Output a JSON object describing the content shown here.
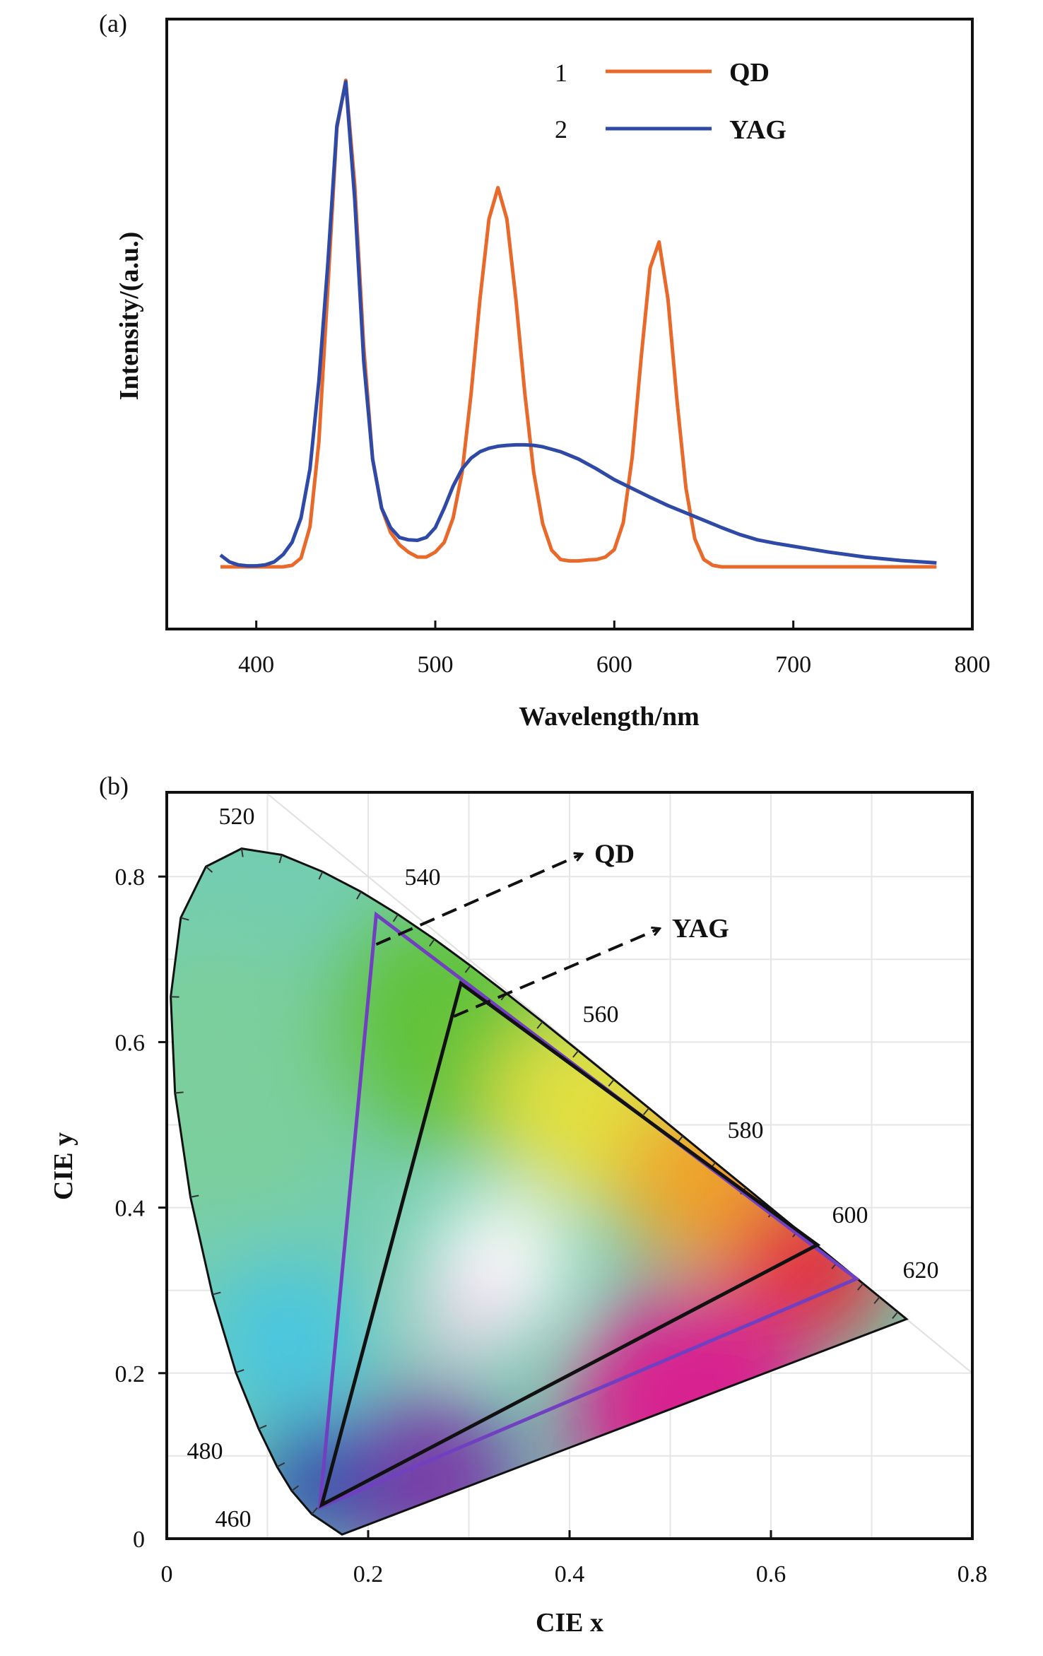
{
  "chart_data": [
    {
      "type": "line",
      "panel_label": "(a)",
      "xlabel": "Wavelength/nm",
      "ylabel": "Intensity/(a.u.)",
      "xlim": [
        350,
        800
      ],
      "ylim": [
        -0.127,
        1.118
      ],
      "xticks": [
        400,
        500,
        600,
        700,
        800
      ],
      "grid": false,
      "legend_placement": "top-right",
      "series": [
        {
          "name": "QD",
          "legend_number": "1",
          "color": "#e8692a",
          "points": [
            [
              380,
              0
            ],
            [
              385,
              0
            ],
            [
              390,
              0
            ],
            [
              395,
              0
            ],
            [
              400,
              0
            ],
            [
              405,
              0
            ],
            [
              410,
              0
            ],
            [
              415,
              0
            ],
            [
              420,
              0.003
            ],
            [
              425,
              0.018
            ],
            [
              430,
              0.082
            ],
            [
              435,
              0.256
            ],
            [
              440,
              0.57
            ],
            [
              445,
              0.895
            ],
            [
              450,
              0.993
            ],
            [
              455,
              0.78
            ],
            [
              460,
              0.45
            ],
            [
              465,
              0.22
            ],
            [
              470,
              0.12
            ],
            [
              475,
              0.07
            ],
            [
              480,
              0.045
            ],
            [
              485,
              0.03
            ],
            [
              490,
              0.02
            ],
            [
              495,
              0.02
            ],
            [
              500,
              0.03
            ],
            [
              505,
              0.05
            ],
            [
              510,
              0.1
            ],
            [
              515,
              0.193
            ],
            [
              520,
              0.354
            ],
            [
              525,
              0.547
            ],
            [
              530,
              0.71
            ],
            [
              535,
              0.774
            ],
            [
              540,
              0.71
            ],
            [
              545,
              0.547
            ],
            [
              550,
              0.354
            ],
            [
              555,
              0.193
            ],
            [
              560,
              0.088
            ],
            [
              565,
              0.034
            ],
            [
              570,
              0.015
            ],
            [
              575,
              0.012
            ],
            [
              580,
              0.012
            ],
            [
              585,
              0.014
            ],
            [
              590,
              0.015
            ],
            [
              595,
              0.02
            ],
            [
              600,
              0.035
            ],
            [
              605,
              0.09
            ],
            [
              610,
              0.224
            ],
            [
              615,
              0.426
            ],
            [
              620,
              0.61
            ],
            [
              625,
              0.663
            ],
            [
              630,
              0.546
            ],
            [
              635,
              0.34
            ],
            [
              640,
              0.161
            ],
            [
              645,
              0.057
            ],
            [
              650,
              0.015
            ],
            [
              655,
              0.003
            ],
            [
              660,
              0
            ],
            [
              680,
              0
            ],
            [
              700,
              0
            ],
            [
              720,
              0
            ],
            [
              740,
              0
            ],
            [
              760,
              0
            ],
            [
              780,
              0
            ]
          ]
        },
        {
          "name": "YAG",
          "legend_number": "2",
          "color": "#2e4aa6",
          "points": [
            [
              380,
              0.024
            ],
            [
              385,
              0.01
            ],
            [
              390,
              0.004
            ],
            [
              395,
              0.002
            ],
            [
              400,
              0.002
            ],
            [
              405,
              0.004
            ],
            [
              410,
              0.01
            ],
            [
              415,
              0.025
            ],
            [
              420,
              0.05
            ],
            [
              425,
              0.1
            ],
            [
              430,
              0.2
            ],
            [
              435,
              0.38
            ],
            [
              440,
              0.62
            ],
            [
              445,
              0.9
            ],
            [
              450,
              0.99
            ],
            [
              455,
              0.75
            ],
            [
              460,
              0.42
            ],
            [
              465,
              0.22
            ],
            [
              470,
              0.12
            ],
            [
              475,
              0.08
            ],
            [
              480,
              0.06
            ],
            [
              485,
              0.055
            ],
            [
              490,
              0.054
            ],
            [
              495,
              0.06
            ],
            [
              500,
              0.08
            ],
            [
              505,
              0.12
            ],
            [
              510,
              0.165
            ],
            [
              515,
              0.2
            ],
            [
              520,
              0.222
            ],
            [
              525,
              0.235
            ],
            [
              530,
              0.242
            ],
            [
              535,
              0.246
            ],
            [
              540,
              0.248
            ],
            [
              545,
              0.249
            ],
            [
              550,
              0.249
            ],
            [
              555,
              0.248
            ],
            [
              560,
              0.245
            ],
            [
              570,
              0.235
            ],
            [
              580,
              0.22
            ],
            [
              590,
              0.2
            ],
            [
              600,
              0.178
            ],
            [
              610,
              0.16
            ],
            [
              620,
              0.142
            ],
            [
              630,
              0.125
            ],
            [
              640,
              0.11
            ],
            [
              650,
              0.095
            ],
            [
              660,
              0.08
            ],
            [
              670,
              0.066
            ],
            [
              680,
              0.055
            ],
            [
              690,
              0.048
            ],
            [
              700,
              0.042
            ],
            [
              720,
              0.03
            ],
            [
              740,
              0.02
            ],
            [
              760,
              0.013
            ],
            [
              780,
              0.008
            ]
          ]
        }
      ]
    },
    {
      "type": "scatter",
      "panel_label": "(b)",
      "xlabel": "CIE x",
      "ylabel": "CIE y",
      "xlim": [
        0,
        0.8
      ],
      "ylim": [
        0,
        0.9
      ],
      "xticks": [
        "0",
        "0.2",
        "0.4",
        "0.6",
        "0.8"
      ],
      "yticks": [
        "0",
        "0.2",
        "0.4",
        "0.6",
        "0.8"
      ],
      "grid": true,
      "spectral_locus": [
        [
          380,
          0.1741,
          0.005
        ],
        [
          460,
          0.144,
          0.0297
        ],
        [
          470,
          0.1241,
          0.0578
        ],
        [
          475,
          0.1096,
          0.0868
        ],
        [
          480,
          0.0913,
          0.1327
        ],
        [
          485,
          0.0687,
          0.2007
        ],
        [
          490,
          0.0454,
          0.295
        ],
        [
          495,
          0.0235,
          0.4127
        ],
        [
          500,
          0.0082,
          0.5384
        ],
        [
          505,
          0.0039,
          0.6548
        ],
        [
          510,
          0.0139,
          0.7502
        ],
        [
          515,
          0.0389,
          0.812
        ],
        [
          520,
          0.0743,
          0.8338
        ],
        [
          525,
          0.1142,
          0.8262
        ],
        [
          530,
          0.1547,
          0.8059
        ],
        [
          535,
          0.1929,
          0.7816
        ],
        [
          540,
          0.2296,
          0.7543
        ],
        [
          545,
          0.2658,
          0.7243
        ],
        [
          550,
          0.3016,
          0.6923
        ],
        [
          555,
          0.3373,
          0.6589
        ],
        [
          560,
          0.3731,
          0.6245
        ],
        [
          565,
          0.4087,
          0.5896
        ],
        [
          570,
          0.4441,
          0.5547
        ],
        [
          575,
          0.4788,
          0.5202
        ],
        [
          580,
          0.5125,
          0.4866
        ],
        [
          585,
          0.5448,
          0.4544
        ],
        [
          590,
          0.5752,
          0.4242
        ],
        [
          595,
          0.6029,
          0.3965
        ],
        [
          600,
          0.627,
          0.3725
        ],
        [
          610,
          0.6658,
          0.334
        ],
        [
          620,
          0.6915,
          0.3083
        ],
        [
          630,
          0.7079,
          0.292
        ],
        [
          650,
          0.726,
          0.274
        ],
        [
          700,
          0.7347,
          0.2653
        ]
      ],
      "wavelength_labels": [
        "460",
        "480",
        "520",
        "540",
        "560",
        "580",
        "600",
        "620"
      ],
      "gamuts": [
        {
          "name": "QD",
          "color": "#7040c0",
          "vertices": [
            [
              0.208,
              0.754
            ],
            [
              0.685,
              0.314
            ],
            [
              0.152,
              0.038
            ]
          ],
          "arrow_from": [
            0.208,
            0.718
          ],
          "arrow_to": [
            0.412,
            0.827
          ]
        },
        {
          "name": "YAG",
          "color": "#111111",
          "vertices": [
            [
              0.292,
              0.671
            ],
            [
              0.646,
              0.355
            ],
            [
              0.154,
              0.041
            ]
          ],
          "arrow_from": [
            0.285,
            0.631
          ],
          "arrow_to": [
            0.489,
            0.737
          ]
        }
      ]
    }
  ]
}
